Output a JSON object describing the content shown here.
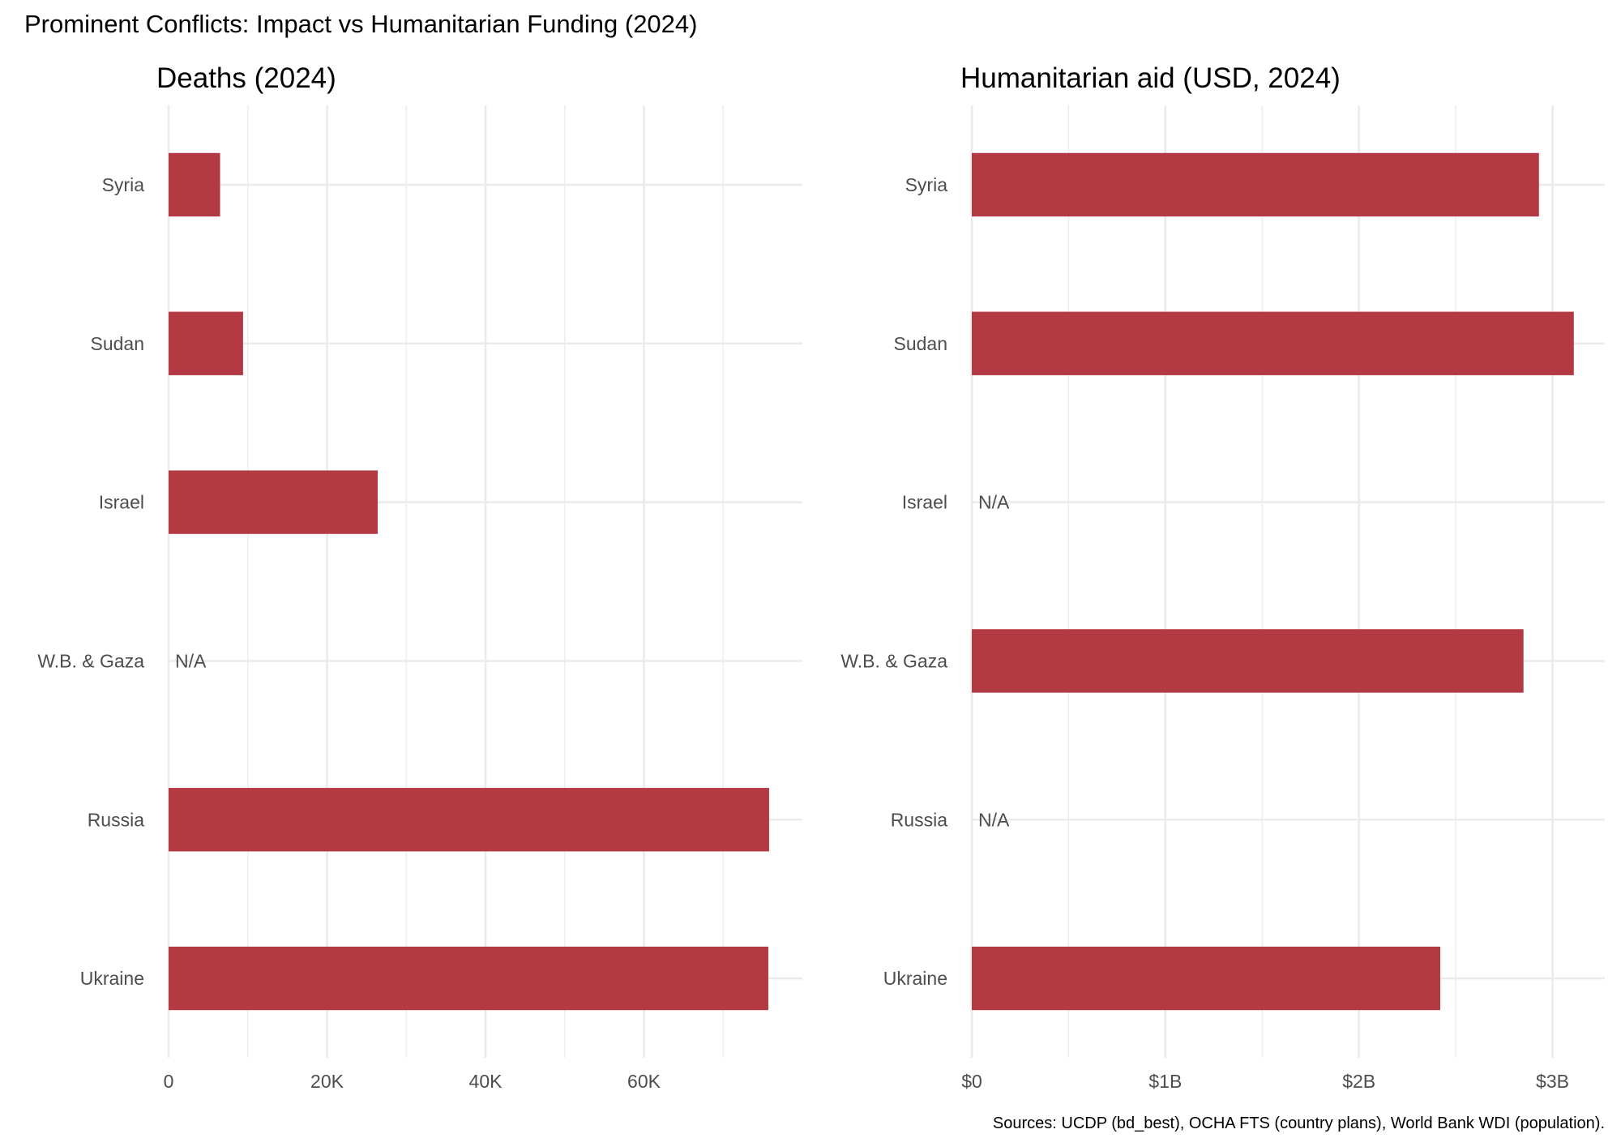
{
  "title": "Prominent Conflicts: Impact vs Humanitarian Funding (2024)",
  "caption": "Sources: UCDP (bd_best), OCHA FTS (country plans), World Bank WDI (population).",
  "colors": {
    "bar": "#b33a43",
    "grid": "#ebebeb",
    "text": "#4d4d4d"
  },
  "chart_data": [
    {
      "type": "bar",
      "orientation": "horizontal",
      "title": "Deaths (2024)",
      "xlabel": "",
      "ylabel": "",
      "categories": [
        "Syria",
        "Sudan",
        "Israel",
        "W.B. & Gaza",
        "Russia",
        "Ukraine"
      ],
      "values": [
        6500,
        9400,
        26400,
        null,
        75800,
        75700
      ],
      "missing_label": "N/A",
      "xlim": [
        0,
        80000
      ],
      "x_ticks": [
        0,
        20000,
        40000,
        60000
      ],
      "x_tick_labels": [
        "0",
        "20K",
        "40K",
        "60K"
      ],
      "grid": true
    },
    {
      "type": "bar",
      "orientation": "horizontal",
      "title": "Humanitarian aid (USD, 2024)",
      "xlabel": "",
      "ylabel": "",
      "categories": [
        "Syria",
        "Sudan",
        "Israel",
        "W.B. & Gaza",
        "Russia",
        "Ukraine"
      ],
      "values": [
        2930000000,
        3110000000,
        null,
        2850000000,
        null,
        2420000000
      ],
      "missing_label": "N/A",
      "xlim": [
        0,
        3270000000
      ],
      "x_ticks": [
        0,
        1000000000,
        2000000000,
        3000000000
      ],
      "x_tick_labels": [
        "$0",
        "$1B",
        "$2B",
        "$3B"
      ],
      "grid": true
    }
  ]
}
